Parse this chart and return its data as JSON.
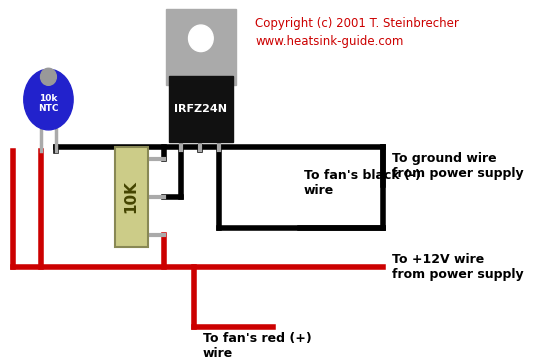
{
  "bg_color": "#ffffff",
  "copyright_text": "Copyright (c) 2001 T. Steinbrecher\nwww.heatsink-guide.com",
  "copyright_color": "#cc0000",
  "copyright_fontsize": 8.5,
  "wire_color_black": "#000000",
  "wire_color_red": "#cc0000",
  "wire_linewidth": 4,
  "mosfet_label": "IRFZ24N",
  "mosfet_body_color": "#111111",
  "mosfet_tab_color": "#aaaaaa",
  "ntc_label": "10k\nNTC",
  "ntc_color_body": "#2222cc",
  "ntc_color_lead": "#aaaaaa",
  "resistor_label": "10K",
  "resistor_color": "#cccc88",
  "resistor_border": "#888855",
  "label_ground": "To ground wire\nfrom power supply",
  "label_fan_black": "To fan's black (-)\nwire",
  "label_12v": "To +12V wire\nfrom power supply",
  "label_fan_red": "To fan's red (+)\nwire",
  "label_fontsize": 9,
  "label_color": "#000000"
}
